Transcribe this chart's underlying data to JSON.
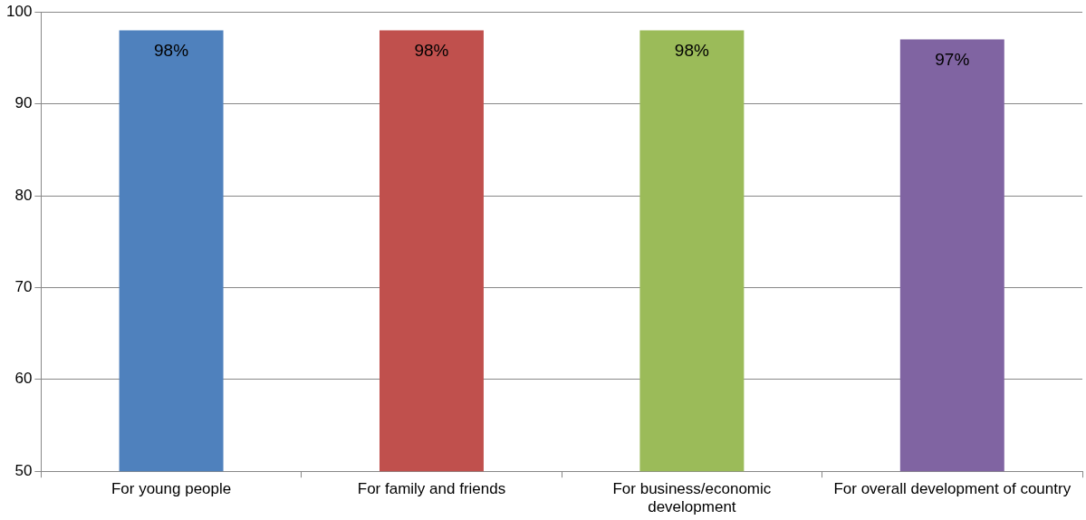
{
  "chart_data": {
    "type": "bar",
    "categories": [
      "For young people",
      "For family and friends",
      "For business/economic development",
      "For overall development of country"
    ],
    "values": [
      98,
      98,
      98,
      97
    ],
    "colors": [
      "#4f81bd",
      "#c0504d",
      "#9bbb59",
      "#8064a2"
    ],
    "value_labels": [
      "98%",
      "98%",
      "98%",
      "97%"
    ],
    "ylim": [
      50,
      100
    ],
    "yticks": [
      50,
      60,
      70,
      80,
      90,
      100
    ],
    "grid": "y",
    "legend": false
  }
}
